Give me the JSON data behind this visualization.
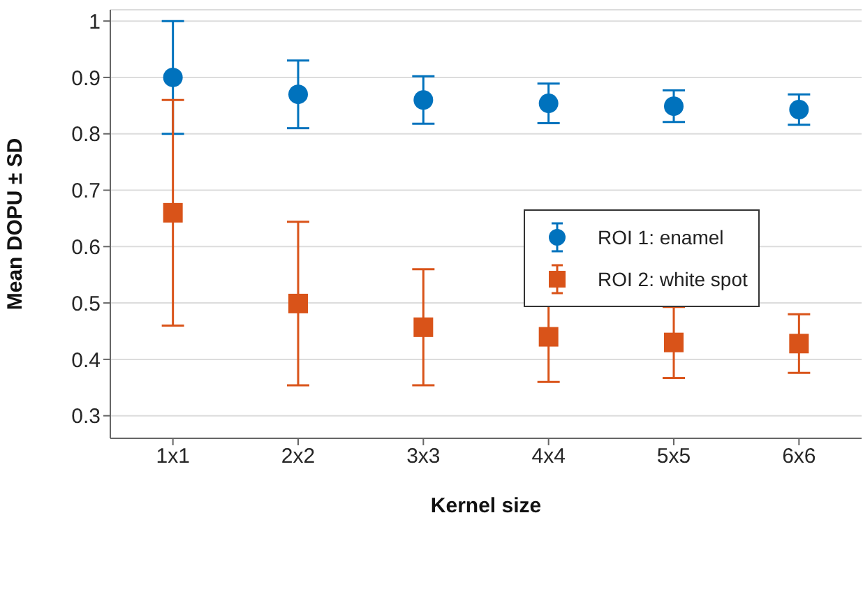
{
  "chart_data": {
    "type": "scatter",
    "xlabel": "Kernel size",
    "ylabel": "Mean DOPU ± SD",
    "categories": [
      "1x1",
      "2x2",
      "3x3",
      "4x4",
      "5x5",
      "6x6"
    ],
    "series": [
      {
        "name": "ROI 1: enamel",
        "color": "#0072bd",
        "marker": "circle",
        "values": [
          0.9,
          0.87,
          0.86,
          0.854,
          0.849,
          0.843
        ],
        "errors": [
          0.1,
          0.06,
          0.042,
          0.035,
          0.028,
          0.027
        ]
      },
      {
        "name": "ROI 2: white spot",
        "color": "#d95319",
        "marker": "square",
        "values": [
          0.66,
          0.499,
          0.457,
          0.44,
          0.43,
          0.428
        ],
        "errors": [
          0.2,
          0.145,
          0.103,
          0.08,
          0.063,
          0.052
        ]
      }
    ],
    "ylim": [
      0.26,
      1.02
    ],
    "yticks": [
      0.3,
      0.4,
      0.5,
      0.6,
      0.7,
      0.8,
      0.9,
      1
    ],
    "grid": "y",
    "legend": "right"
  }
}
